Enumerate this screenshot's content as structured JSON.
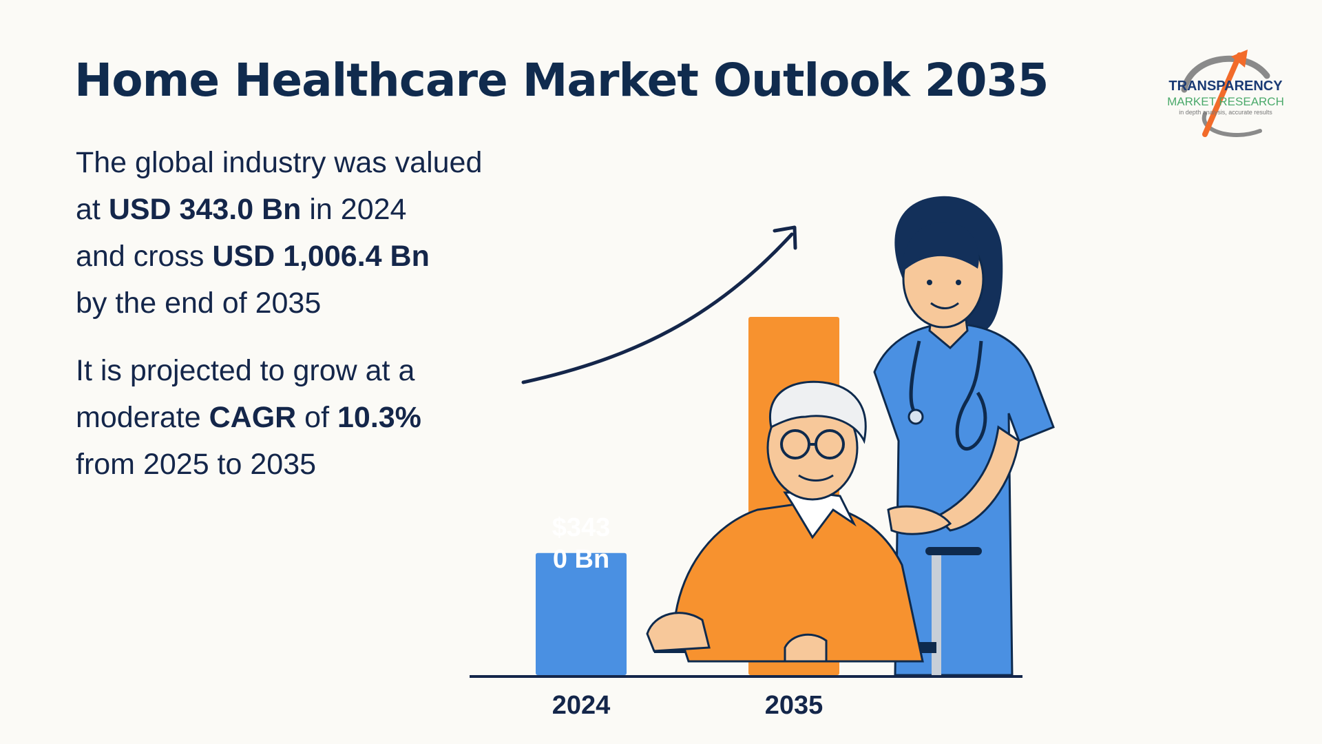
{
  "title": "Home Healthcare Market Outlook 2035",
  "paragraph1": {
    "t1": "The global industry was valued",
    "t2": "at ",
    "b1": "USD 343.0 Bn",
    "t3": " in 2024",
    "t4": "and cross ",
    "b2": "USD 1,006.4 Bn",
    "t5": "by the end of 2035"
  },
  "paragraph2": {
    "t1": "It is projected to grow at a",
    "t2": "moderate ",
    "b1": "CAGR",
    "t3": " of ",
    "b2": "10.3%",
    "t4": "from 2025 to 2035"
  },
  "logo": {
    "line1": "TRANSPARENCY",
    "line2": "MARKET RESEARCH",
    "line3": "in depth analysis, accurate results"
  },
  "colors": {
    "bar_2024": "#4a90e2",
    "bar_2035": "#f7922f",
    "text_dark": "#102b4e"
  },
  "chart_data": {
    "type": "bar",
    "categories": [
      "2024",
      "2035"
    ],
    "values": [
      343.0,
      1006.4
    ],
    "data_labels": [
      "$343\n0 Bn",
      ""
    ],
    "colors": [
      "#4a90e2",
      "#f7922f"
    ],
    "trend_arrow": true,
    "grid": false
  }
}
